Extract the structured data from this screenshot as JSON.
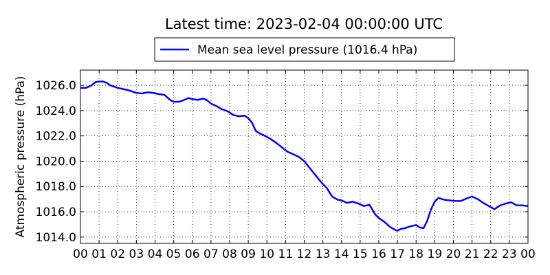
{
  "chart_data": {
    "type": "line",
    "title": "Latest time: 2023-02-04 00:00:00 UTC",
    "xlabel": "",
    "ylabel": "Atmospheric pressure (hPa)",
    "xlim": [
      0,
      24
    ],
    "ylim": [
      1013.5,
      1027.2
    ],
    "grid": true,
    "legend": "top-center",
    "x_ticks": [
      "00",
      "01",
      "02",
      "03",
      "04",
      "05",
      "06",
      "07",
      "08",
      "09",
      "10",
      "11",
      "12",
      "13",
      "14",
      "15",
      "16",
      "17",
      "18",
      "19",
      "20",
      "21",
      "22",
      "23",
      "00"
    ],
    "y_ticks": [
      1014.0,
      1016.0,
      1018.0,
      1020.0,
      1022.0,
      1024.0,
      1026.0
    ],
    "y_tick_labels": [
      "1014.0",
      "1016.0",
      "1018.0",
      "1020.0",
      "1022.0",
      "1024.0",
      "1026.0"
    ],
    "series": [
      {
        "name": "Mean sea level pressure (1016.4 hPa)",
        "color": "#0000ff",
        "x": [
          0,
          0.3,
          0.6,
          0.8,
          1.0,
          1.2,
          1.4,
          1.6,
          1.8,
          2.0,
          2.3,
          2.6,
          2.8,
          3.0,
          3.3,
          3.6,
          3.9,
          4.2,
          4.5,
          4.8,
          5.0,
          5.3,
          5.5,
          5.8,
          6.0,
          6.3,
          6.6,
          6.8,
          7.0,
          7.3,
          7.6,
          7.9,
          8.2,
          8.5,
          8.8,
          9.0,
          9.2,
          9.4,
          9.6,
          9.9,
          10.2,
          10.5,
          10.8,
          11.1,
          11.4,
          11.7,
          12.0,
          12.3,
          12.6,
          12.9,
          13.2,
          13.5,
          13.8,
          14.0,
          14.3,
          14.6,
          14.9,
          15.2,
          15.5,
          15.8,
          16.0,
          16.3,
          16.6,
          16.9,
          17.0,
          17.2,
          17.4,
          17.7,
          18.0,
          18.2,
          18.4,
          18.6,
          18.8,
          19.0,
          19.2,
          19.5,
          19.8,
          20.1,
          20.4,
          20.7,
          21.0,
          21.3,
          21.6,
          21.9,
          22.2,
          22.5,
          22.8,
          23.1,
          23.4,
          23.7,
          24.0
        ],
        "y": [
          1025.8,
          1025.8,
          1026.0,
          1026.25,
          1026.3,
          1026.3,
          1026.2,
          1026.0,
          1025.9,
          1025.8,
          1025.7,
          1025.6,
          1025.5,
          1025.4,
          1025.35,
          1025.45,
          1025.4,
          1025.3,
          1025.25,
          1024.85,
          1024.7,
          1024.7,
          1024.8,
          1025.0,
          1024.9,
          1024.85,
          1024.95,
          1024.8,
          1024.55,
          1024.35,
          1024.1,
          1023.95,
          1023.65,
          1023.55,
          1023.6,
          1023.4,
          1023.05,
          1022.4,
          1022.2,
          1022.0,
          1021.75,
          1021.45,
          1021.1,
          1020.75,
          1020.55,
          1020.35,
          1020.0,
          1019.45,
          1018.9,
          1018.35,
          1017.9,
          1017.2,
          1016.95,
          1016.9,
          1016.7,
          1016.8,
          1016.65,
          1016.45,
          1016.55,
          1015.8,
          1015.5,
          1015.2,
          1014.8,
          1014.55,
          1014.5,
          1014.65,
          1014.7,
          1014.85,
          1014.95,
          1014.75,
          1014.7,
          1015.3,
          1016.2,
          1016.8,
          1017.1,
          1016.95,
          1016.9,
          1016.85,
          1016.85,
          1017.05,
          1017.2,
          1017.0,
          1016.7,
          1016.45,
          1016.2,
          1016.5,
          1016.65,
          1016.75,
          1016.5,
          1016.5,
          1016.45
        ]
      }
    ]
  }
}
